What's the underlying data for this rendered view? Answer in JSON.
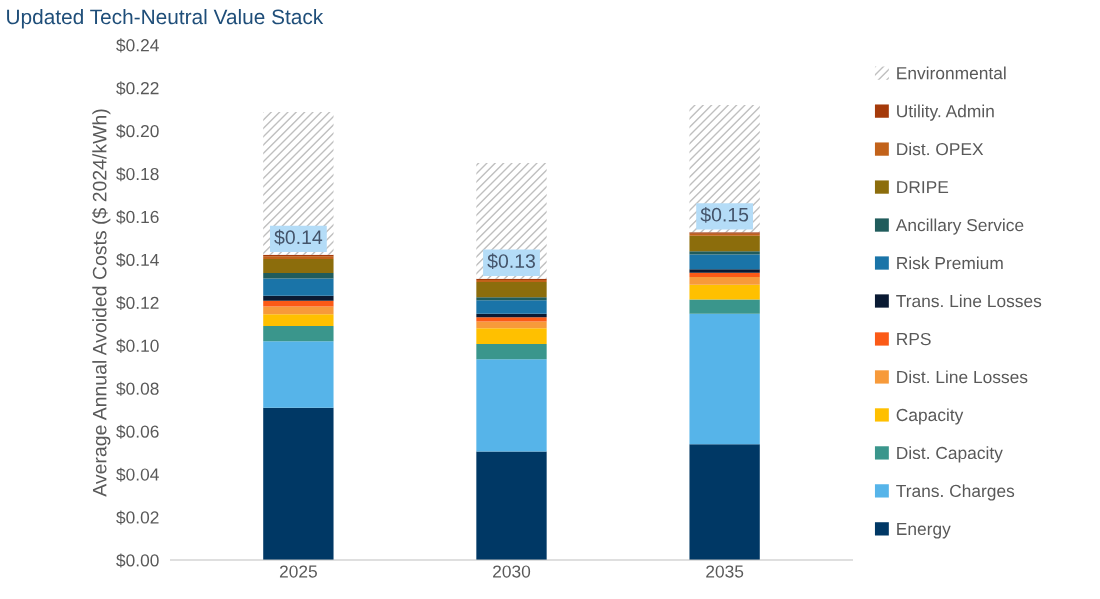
{
  "chart_data": {
    "type": "bar",
    "title": "Updated Tech-Neutral Value Stack",
    "ylabel": "Average Annual Avoided Costs ($ 2024/kWh)",
    "categories": [
      "2025",
      "2030",
      "2035"
    ],
    "stacked": true,
    "legend": "right",
    "grid": false,
    "ylim": [
      0,
      0.24
    ],
    "yticks": [
      {
        "value": 0,
        "label": "$0.00"
      },
      {
        "value": 0.02,
        "label": "$0.02"
      },
      {
        "value": 0.04,
        "label": "$0.04"
      },
      {
        "value": 0.06,
        "label": "$0.06"
      },
      {
        "value": 0.08,
        "label": "$0.08"
      },
      {
        "value": 0.1,
        "label": "$0.10"
      },
      {
        "value": 0.12,
        "label": "$0.12"
      },
      {
        "value": 0.14,
        "label": "$0.14"
      },
      {
        "value": 0.16,
        "label": "$0.16"
      },
      {
        "value": 0.18,
        "label": "$0.18"
      },
      {
        "value": 0.2,
        "label": "$0.20"
      },
      {
        "value": 0.22,
        "label": "$0.22"
      },
      {
        "value": 0.24,
        "label": "$0.24"
      }
    ],
    "totals": [
      "$0.14",
      "$0.13",
      "$0.15"
    ],
    "series": [
      {
        "name": "Energy",
        "color": "#003865",
        "values": [
          0.071,
          0.0506,
          0.054
        ]
      },
      {
        "name": "Trans. Charges",
        "color": "#56b4e9",
        "values": [
          0.031,
          0.043,
          0.0607
        ]
      },
      {
        "name": "Dist. Capacity",
        "color": "#3a968c",
        "values": [
          0.007,
          0.0071,
          0.0067
        ]
      },
      {
        "name": "Capacity",
        "color": "#ffc000",
        "values": [
          0.0055,
          0.0073,
          0.0069
        ]
      },
      {
        "name": "Dist. Line Losses",
        "color": "#f79a3a",
        "values": [
          0.0036,
          0.0031,
          0.0036
        ]
      },
      {
        "name": "RPS",
        "color": "#fb5a17",
        "values": [
          0.0027,
          0.002,
          0.002
        ]
      },
      {
        "name": "Trans. Line Losses",
        "color": "#0a1a33",
        "values": [
          0.0023,
          0.0016,
          0.0016
        ]
      },
      {
        "name": "Risk Premium",
        "color": "#1a74a8",
        "values": [
          0.0081,
          0.0063,
          0.0069
        ]
      },
      {
        "name": "Ancillary Service",
        "color": "#205c5c",
        "values": [
          0.0025,
          0.0015,
          0.0015
        ]
      },
      {
        "name": "DRIPE",
        "color": "#8c6d0c",
        "values": [
          0.0066,
          0.007,
          0.0072
        ]
      },
      {
        "name": "Dist. OPEX",
        "color": "#c2621a",
        "values": [
          0.0012,
          0.001,
          0.0009
        ]
      },
      {
        "name": "Utility. Admin",
        "color": "#a53a0a",
        "values": [
          0.0007,
          0.0006,
          0.0007
        ]
      },
      {
        "name": "Environmental",
        "color": "#bfbfbf",
        "values": [
          0.0666,
          0.0539,
          0.0593
        ]
      }
    ]
  }
}
